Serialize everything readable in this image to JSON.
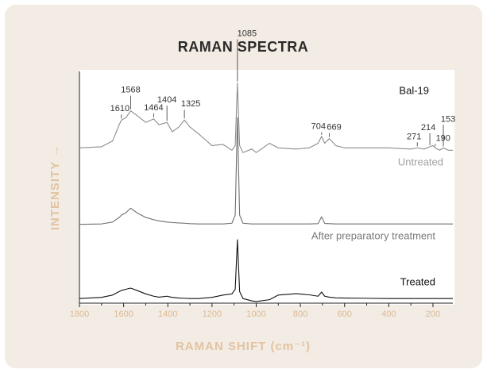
{
  "chart_data": {
    "type": "line",
    "title": "RAMAN SPECTRA",
    "xlabel": "RAMAN SHIFT (cm⁻¹)",
    "ylabel": "INTENSITY →",
    "sample_label": "Bal-19",
    "xlim": [
      1800,
      110
    ],
    "ylim": [
      0,
      100
    ],
    "xticks": [
      1800,
      1600,
      1400,
      1200,
      1000,
      800,
      600,
      400,
      200
    ],
    "xticks_minor": [
      1700,
      1500,
      1300,
      1100,
      900,
      700,
      500,
      300
    ],
    "x": [
      1800,
      1700,
      1650,
      1620,
      1610,
      1590,
      1568,
      1540,
      1500,
      1464,
      1440,
      1404,
      1380,
      1350,
      1325,
      1300,
      1260,
      1200,
      1150,
      1110,
      1095,
      1085,
      1075,
      1060,
      1020,
      1000,
      940,
      900,
      820,
      760,
      720,
      704,
      690,
      669,
      640,
      600,
      500,
      400,
      300,
      271,
      240,
      214,
      200,
      190,
      170,
      153,
      130,
      110
    ],
    "series": [
      {
        "name": "Untreated",
        "color": "#8c8c8c",
        "label_color": "#a0a0a0",
        "values": [
          67,
          67.5,
          70,
          77,
          79,
          80,
          83,
          81,
          78,
          79.5,
          77,
          78,
          74,
          76,
          79,
          76,
          73,
          68,
          68.5,
          66,
          68,
          95,
          68,
          65,
          66.5,
          65,
          69,
          67,
          66.5,
          67,
          69,
          72,
          69,
          71,
          68,
          67,
          67,
          67,
          66.5,
          67,
          66.5,
          67.5,
          68,
          67,
          66,
          67,
          66,
          66
        ]
      },
      {
        "name": "After preparatory treatment",
        "color": "#6e6e6e",
        "label_color": "#7a7a7a",
        "values": [
          34,
          34.2,
          35,
          37,
          38,
          39,
          41,
          39,
          37,
          36,
          35.5,
          35,
          34.8,
          34.6,
          34.5,
          34.3,
          34.2,
          34.2,
          34.2,
          34.5,
          38,
          80,
          38,
          34.5,
          34.2,
          34.2,
          34.2,
          34.2,
          34.2,
          34.2,
          34.3,
          37.3,
          34.4,
          34.3,
          34.2,
          34.2,
          34.2,
          34.2,
          34.2,
          34.2,
          34.2,
          34.2,
          34.2,
          34.2,
          34.2,
          34.2,
          34.2,
          34.2
        ]
      },
      {
        "name": "Treated",
        "color": "#111111",
        "label_color": "#111111",
        "values": [
          2,
          2.5,
          3.5,
          5,
          5.5,
          6,
          6.5,
          5.5,
          4,
          3,
          2.6,
          3,
          2.5,
          2.2,
          2.1,
          2,
          2,
          2.5,
          3.5,
          4,
          6,
          27.4,
          5,
          2,
          1,
          0.7,
          1.5,
          3.5,
          4.1,
          3.6,
          3,
          4.8,
          3,
          2.6,
          2.3,
          2.2,
          2.1,
          2,
          2,
          2,
          2,
          2,
          2,
          2,
          2,
          2,
          2,
          2
        ]
      }
    ],
    "peak_labels": [
      1610,
      1568,
      1464,
      1404,
      1325,
      1085,
      704,
      669,
      271,
      214,
      190,
      153
    ]
  }
}
